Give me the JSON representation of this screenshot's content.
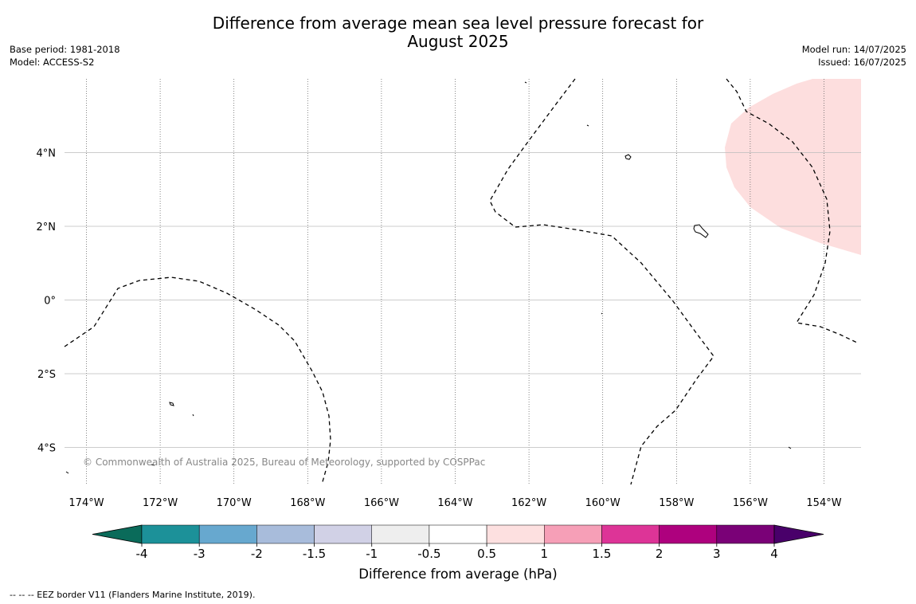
{
  "title": {
    "line1": "Difference from average mean sea level pressure forecast for",
    "line2": "August 2025"
  },
  "meta": {
    "base_period": "Base period: 1981-2018",
    "model": "Model: ACCESS-S2",
    "model_run": "Model run: 14/07/2025",
    "issued": "Issued: 16/07/2025"
  },
  "map": {
    "copyright": "© Commonwealth of Australia 2025, Bureau of Meteorology, supported by COSPPac",
    "x_ticks": [
      {
        "label": "174°W",
        "lon": -174
      },
      {
        "label": "172°W",
        "lon": -172
      },
      {
        "label": "170°W",
        "lon": -170
      },
      {
        "label": "168°W",
        "lon": -168
      },
      {
        "label": "166°W",
        "lon": -166
      },
      {
        "label": "164°W",
        "lon": -164
      },
      {
        "label": "162°W",
        "lon": -162
      },
      {
        "label": "160°W",
        "lon": -160
      },
      {
        "label": "158°W",
        "lon": -158
      },
      {
        "label": "156°W",
        "lon": -156
      },
      {
        "label": "154°W",
        "lon": -154
      }
    ],
    "y_ticks": [
      {
        "label": "4°N",
        "lat": 4
      },
      {
        "label": "2°N",
        "lat": 2
      },
      {
        "label": "0°",
        "lat": 0
      },
      {
        "label": "2°S",
        "lat": -2
      },
      {
        "label": "4°S",
        "lat": -4
      }
    ],
    "anomaly_fill_color": "#fddede"
  },
  "colorbar": {
    "label": "Difference from average (hPa)",
    "ticks": [
      "-4",
      "-3",
      "-2",
      "-1.5",
      "-1",
      "-0.5",
      "0.5",
      "1",
      "1.5",
      "2",
      "3",
      "4"
    ],
    "colors": [
      "#0a6b5a",
      "#1c9199",
      "#67a8cf",
      "#a8bcdb",
      "#d1d1e6",
      "#eeeeee",
      "#ffffff",
      "#fde0e0",
      "#f69fb7",
      "#dd3497",
      "#ae017e",
      "#7a0177",
      "#49006a"
    ]
  },
  "footnote": "--  --  -- EEZ border V11 (Flanders Marine Institute, 2019)."
}
